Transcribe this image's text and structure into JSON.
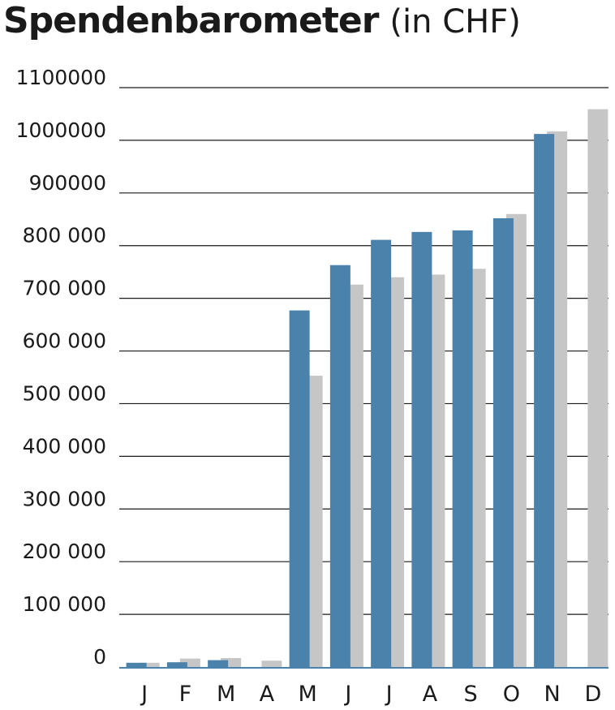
{
  "header": {
    "title": "Spendenbarometer",
    "subtitle": "(in CHF)"
  },
  "colors": {
    "current": "#4a82ab",
    "previous": "#c6c6c6",
    "grid": "#1a1a1a",
    "axis": "#4a82ab"
  },
  "chart_data": {
    "type": "bar",
    "title": "Spendenbarometer",
    "subtitle": "(in CHF)",
    "categories": [
      "J",
      "F",
      "M",
      "A",
      "M",
      "J",
      "J",
      "A",
      "S",
      "O",
      "N",
      "D"
    ],
    "series": [
      {
        "values": [
          8000,
          9000,
          13000,
          null,
          677000,
          763000,
          811000,
          826000,
          829000,
          852000,
          1012000,
          null
        ],
        "color": "#4a82ab"
      },
      {
        "values": [
          8000,
          16000,
          17000,
          12000,
          553000,
          726000,
          740000,
          745000,
          756000,
          860000,
          1017000,
          1059000
        ],
        "color": "#c6c6c6"
      }
    ],
    "yticks": [
      "0",
      "100000",
      "200000",
      "300000",
      "400000",
      "500000",
      "600000",
      "700000",
      "800000",
      "900000",
      "1000000",
      "1100000"
    ],
    "ytick_labels": [
      "0",
      "100 000",
      "200 000",
      "300 000",
      "400 000",
      "500 000",
      "600 000",
      "700 000",
      "800 000",
      "900000",
      "1000000",
      "1100000"
    ],
    "ylim": [
      0,
      1100000
    ],
    "grid": true,
    "legend": "none"
  }
}
